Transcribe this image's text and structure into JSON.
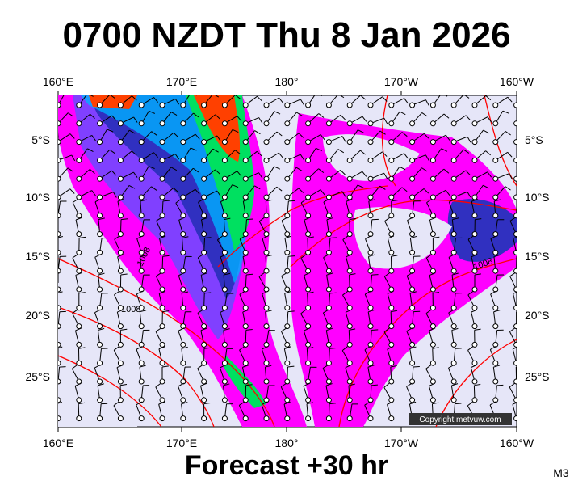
{
  "title": "0700 NZDT Thu 8 Jan 2026",
  "map": {
    "longitude_labels": [
      "160°E",
      "170°E",
      "180°",
      "170°W",
      "160°W"
    ],
    "latitude_labels": [
      "5°S",
      "10°S",
      "15°S",
      "20°S",
      "25°S"
    ],
    "isobar_labels": [
      "1008",
      "1008",
      "1008"
    ],
    "copyright": "Copyright metvuw.com"
  },
  "footer": {
    "forecast": "Forecast +30 hr",
    "model": "M3"
  }
}
